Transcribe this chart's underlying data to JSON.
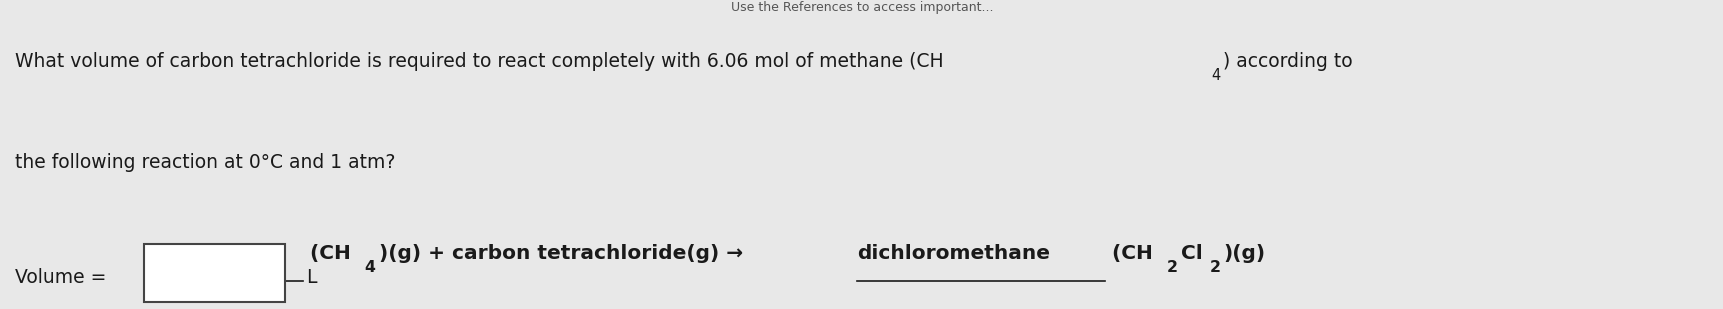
{
  "background_color": "#e8e8e8",
  "top_text": "Use the References to access important...",
  "line1_main": "What volume of carbon tetrachloride is required to react completely with 6.06 mol of methane (CH",
  "line1_sub": "4",
  "line1_end": ") according to",
  "line2": "the following reaction at 0°C and 1 atm?",
  "volume_label": "Volume = ",
  "unit_label": "L",
  "text_color": "#1a1a1a",
  "box_color": "#ffffff",
  "box_edge_color": "#444444",
  "font_size_main": 13.5,
  "font_size_reaction": 14.5
}
